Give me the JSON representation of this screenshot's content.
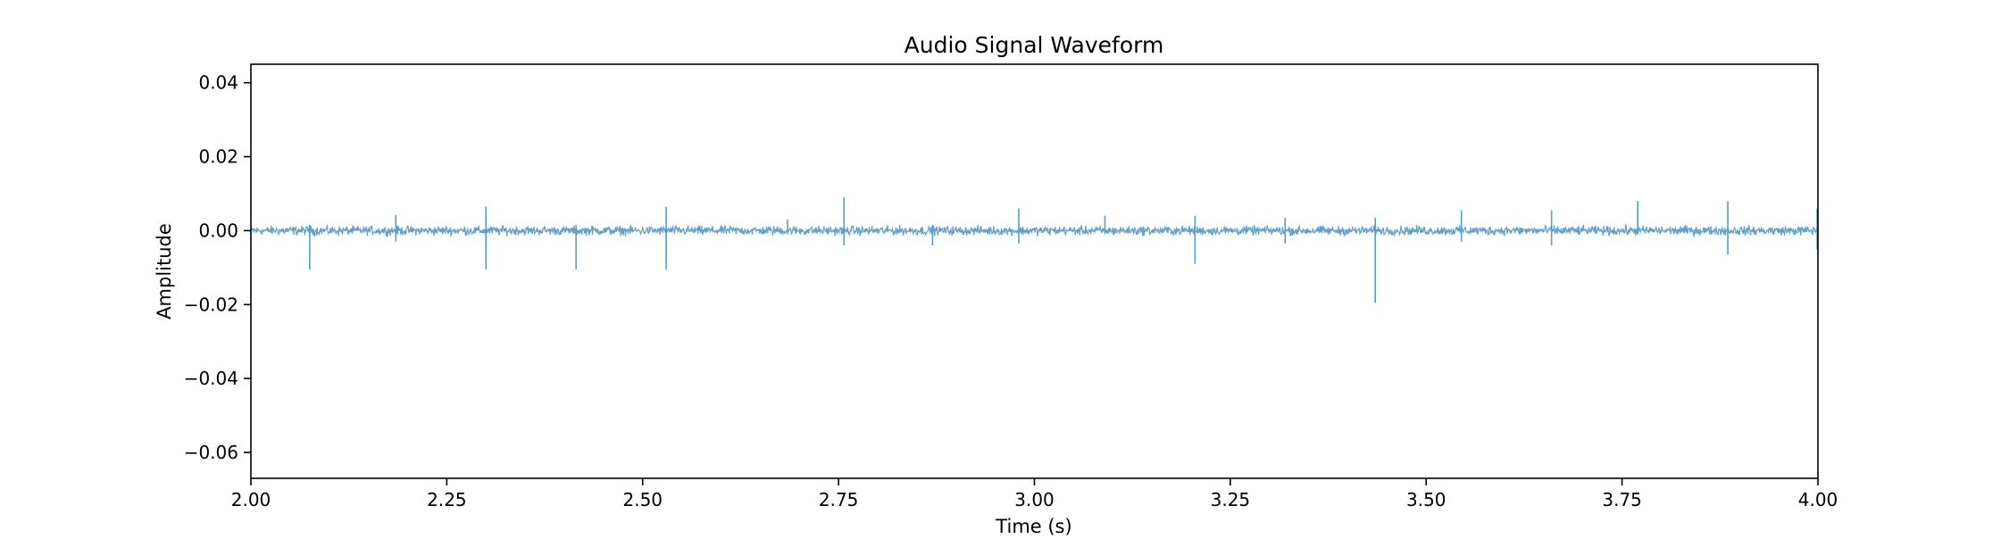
{
  "chart_data": {
    "type": "line",
    "title": "Audio Signal Waveform",
    "xlabel": "Time (s)",
    "ylabel": "Amplitude",
    "xlim": [
      2.0,
      4.0
    ],
    "ylim": [
      -0.067,
      0.045
    ],
    "x_ticks": [
      2.0,
      2.25,
      2.5,
      2.75,
      3.0,
      3.25,
      3.5,
      3.75,
      4.0
    ],
    "x_tick_labels": [
      "2.00",
      "2.25",
      "2.50",
      "2.75",
      "3.00",
      "3.25",
      "3.50",
      "3.75",
      "4.00"
    ],
    "y_ticks": [
      0.04,
      0.02,
      0.0,
      -0.02,
      -0.04,
      -0.06
    ],
    "y_tick_labels": [
      "0.04",
      "0.02",
      "0.00",
      "−0.02",
      "−0.04",
      "−0.06"
    ],
    "grid": false,
    "series": [
      {
        "color": "#5b9bc6",
        "baseline": 0.0,
        "noise_amplitude": 0.0012,
        "spikes": [
          {
            "t": 2.075,
            "min": -0.0105,
            "max": 0.0015
          },
          {
            "t": 2.185,
            "min": -0.003,
            "max": 0.0042
          },
          {
            "t": 2.3,
            "min": -0.0105,
            "max": 0.0065
          },
          {
            "t": 2.415,
            "min": -0.0105,
            "max": 0.0015
          },
          {
            "t": 2.53,
            "min": -0.0105,
            "max": 0.0065
          },
          {
            "t": 2.685,
            "min": -0.001,
            "max": 0.003
          },
          {
            "t": 2.757,
            "min": -0.004,
            "max": 0.009
          },
          {
            "t": 2.87,
            "min": -0.004,
            "max": 0.0015
          },
          {
            "t": 2.98,
            "min": -0.0035,
            "max": 0.006
          },
          {
            "t": 3.09,
            "min": -0.001,
            "max": 0.004
          },
          {
            "t": 3.205,
            "min": -0.009,
            "max": 0.004
          },
          {
            "t": 3.32,
            "min": -0.0035,
            "max": 0.0035
          },
          {
            "t": 3.435,
            "min": -0.0195,
            "max": 0.0035
          },
          {
            "t": 3.545,
            "min": -0.003,
            "max": 0.0055
          },
          {
            "t": 3.66,
            "min": -0.004,
            "max": 0.0055
          },
          {
            "t": 3.77,
            "min": -0.001,
            "max": 0.008
          },
          {
            "t": 3.885,
            "min": -0.0065,
            "max": 0.008
          },
          {
            "t": 3.999,
            "min": -0.005,
            "max": 0.006
          }
        ]
      }
    ]
  }
}
